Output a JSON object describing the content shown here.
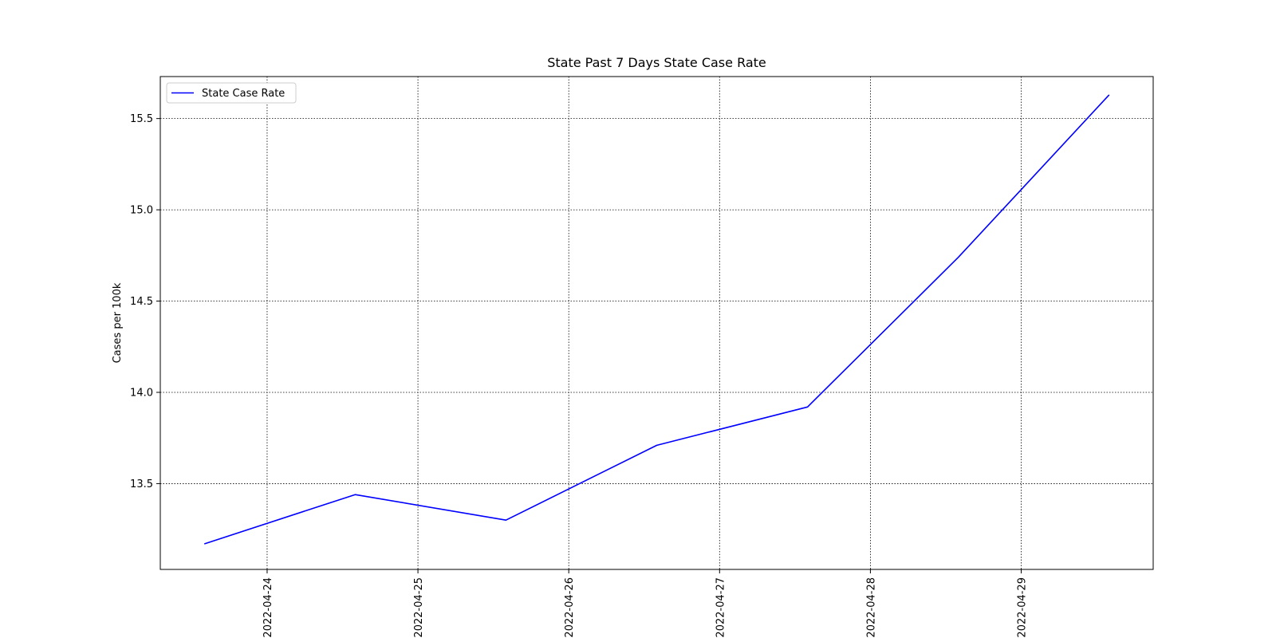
{
  "chart_data": {
    "type": "line",
    "title": "State Past 7 Days State Case Rate",
    "xlabel": "",
    "ylabel": "Cases per 100k",
    "x_tick_labels": [
      "2022-04-24",
      "2022-04-25",
      "2022-04-26",
      "2022-04-27",
      "2022-04-28",
      "2022-04-29"
    ],
    "y_tick_labels": [
      "13.5",
      "14.0",
      "14.5",
      "15.0",
      "15.5"
    ],
    "xlim": [
      "2022-04-23T07:00",
      "2022-04-29T21:00"
    ],
    "ylim": [
      13.03,
      15.73
    ],
    "grid": true,
    "legend_position": "top-left",
    "series": [
      {
        "name": "State Case Rate",
        "color": "#0000ff",
        "x": [
          "2022-04-23T14:00",
          "2022-04-24T14:00",
          "2022-04-25T14:00",
          "2022-04-26T14:00",
          "2022-04-27T14:00",
          "2022-04-28T14:00",
          "2022-04-29T14:00"
        ],
        "y": [
          13.17,
          13.44,
          13.3,
          13.71,
          13.92,
          14.74,
          15.63
        ]
      }
    ]
  }
}
